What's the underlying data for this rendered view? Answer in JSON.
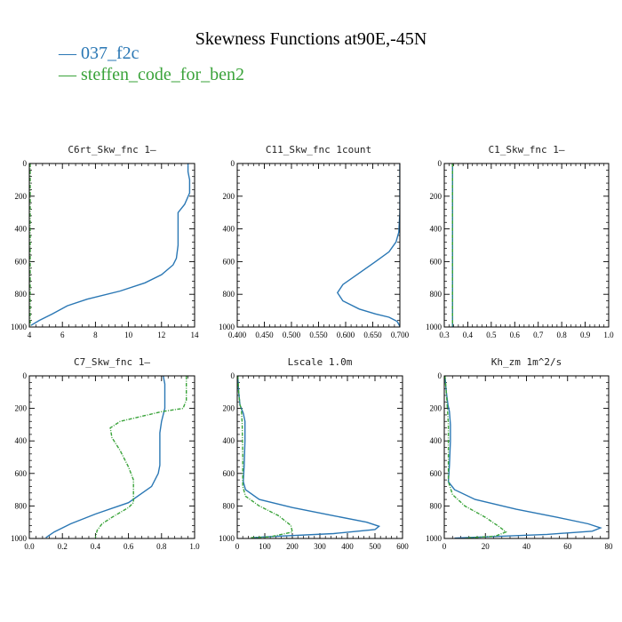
{
  "figure": {
    "title": "Skewness Functions at90E,-45N",
    "legend": [
      {
        "label": "— 037_f2c",
        "color": "#2a77b4"
      },
      {
        "label": "— steffen_code_for_ben2",
        "color": "#3aa33a"
      }
    ]
  },
  "chart_data": [
    {
      "type": "line",
      "title": "C6rt_Skw_fnc  1—",
      "xlim": [
        4,
        14
      ],
      "xticks": [
        4,
        6,
        8,
        10,
        12,
        14
      ],
      "xticklabels": [
        "4",
        "6",
        "8",
        "10",
        "12",
        "14"
      ],
      "ylim": [
        1000,
        0
      ],
      "yticks": [
        0,
        200,
        400,
        600,
        800,
        1000
      ],
      "series": [
        {
          "name": "037_f2c",
          "color": "#2a77b4",
          "dashed": false,
          "x": [
            13.6,
            13.6,
            13.7,
            13.7,
            13.4,
            13.0,
            13.0,
            13.0,
            12.9,
            12.7,
            12.0,
            11.0,
            9.5,
            7.5,
            6.3,
            5.4,
            4.6,
            4.1
          ],
          "y": [
            0,
            50,
            100,
            180,
            250,
            300,
            400,
            500,
            580,
            620,
            680,
            730,
            780,
            830,
            870,
            920,
            960,
            990
          ]
        },
        {
          "name": "steffen_code_for_ben2",
          "color": "#3aa33a",
          "dashed": true,
          "x": [
            4.05,
            4.05
          ],
          "y": [
            0,
            1000
          ]
        }
      ]
    },
    {
      "type": "line",
      "title": "C11_Skw_fnc  1count",
      "xlim": [
        0.4,
        0.7
      ],
      "xticks": [
        0.4,
        0.45,
        0.5,
        0.55,
        0.6,
        0.65,
        0.7
      ],
      "xticklabels": [
        "0.400",
        "0.450",
        "0.500",
        "0.550",
        "0.600",
        "0.650",
        "0.700"
      ],
      "ylim": [
        1000,
        0
      ],
      "yticks": [
        0,
        200,
        400,
        600,
        800,
        1000
      ],
      "series": [
        {
          "name": "037_f2c",
          "color": "#2a77b4",
          "dashed": false,
          "x": [
            0.7,
            0.7,
            0.698,
            0.693,
            0.68,
            0.655,
            0.625,
            0.595,
            0.585,
            0.595,
            0.625,
            0.655,
            0.68,
            0.695,
            0.7
          ],
          "y": [
            0,
            300,
            420,
            480,
            540,
            600,
            670,
            740,
            790,
            840,
            890,
            920,
            940,
            965,
            995
          ]
        }
      ]
    },
    {
      "type": "line",
      "title": "C1_Skw_fnc  1—",
      "xlim": [
        0.3,
        1.0
      ],
      "xticks": [
        0.3,
        0.4,
        0.5,
        0.6,
        0.7,
        0.8,
        0.9,
        1.0
      ],
      "xticklabels": [
        "0.3",
        "0.4",
        "0.5",
        "0.6",
        "0.7",
        "0.8",
        "0.9",
        "1.0"
      ],
      "ylim": [
        1000,
        0
      ],
      "yticks": [
        0,
        200,
        400,
        600,
        800,
        1000
      ],
      "series": [
        {
          "name": "037_f2c",
          "color": "#2a77b4",
          "dashed": false,
          "x": [
            0.335,
            0.335
          ],
          "y": [
            0,
            1000
          ]
        },
        {
          "name": "steffen_code_for_ben2",
          "color": "#3aa33a",
          "dashed": true,
          "x": [
            0.335,
            0.335
          ],
          "y": [
            0,
            1000
          ]
        }
      ]
    },
    {
      "type": "line",
      "title": "C7_Skw_fnc  1—",
      "xlim": [
        0.0,
        1.0
      ],
      "xticks": [
        0.0,
        0.2,
        0.4,
        0.6,
        0.8,
        1.0
      ],
      "xticklabels": [
        "0.0",
        "0.2",
        "0.4",
        "0.6",
        "0.8",
        "1.0"
      ],
      "ylim": [
        1000,
        0
      ],
      "yticks": [
        0,
        200,
        400,
        600,
        800,
        1000
      ],
      "series": [
        {
          "name": "037_f2c",
          "color": "#2a77b4",
          "dashed": false,
          "x": [
            0.81,
            0.82,
            0.82,
            0.8,
            0.79,
            0.79,
            0.79,
            0.78,
            0.74,
            0.6,
            0.4,
            0.25,
            0.15,
            0.1
          ],
          "y": [
            0,
            50,
            200,
            280,
            350,
            450,
            550,
            600,
            680,
            780,
            850,
            910,
            960,
            995
          ]
        },
        {
          "name": "steffen_code_for_ben2",
          "color": "#3aa33a",
          "dashed": true,
          "x": [
            0.95,
            0.95,
            0.93,
            0.8,
            0.55,
            0.49,
            0.5,
            0.55,
            0.6,
            0.63,
            0.63,
            0.6,
            0.5,
            0.44,
            0.41,
            0.4
          ],
          "y": [
            0,
            150,
            200,
            220,
            280,
            320,
            380,
            460,
            560,
            640,
            780,
            810,
            870,
            910,
            950,
            995
          ]
        }
      ]
    },
    {
      "type": "line",
      "title": "Lscale  1.0m",
      "xlim": [
        0,
        600
      ],
      "xticks": [
        0,
        100,
        200,
        300,
        400,
        500,
        600
      ],
      "xticklabels": [
        "0",
        "100",
        "200",
        "300",
        "400",
        "500",
        "600"
      ],
      "ylim": [
        1000,
        0
      ],
      "yticks": [
        0,
        200,
        400,
        600,
        800,
        1000
      ],
      "series": [
        {
          "name": "037_f2c",
          "color": "#2a77b4",
          "dashed": false,
          "x": [
            2,
            5,
            10,
            15,
            22,
            28,
            28,
            25,
            22,
            30,
            80,
            200,
            350,
            470,
            515,
            500,
            350,
            100,
            60
          ],
          "y": [
            0,
            100,
            180,
            200,
            230,
            280,
            400,
            550,
            650,
            700,
            760,
            810,
            860,
            900,
            925,
            945,
            970,
            990,
            995
          ]
        },
        {
          "name": "steffen_code_for_ben2",
          "color": "#3aa33a",
          "dashed": true,
          "x": [
            2,
            5,
            10,
            15,
            18,
            20,
            20,
            20,
            30,
            80,
            150,
            195,
            200,
            120,
            50
          ],
          "y": [
            0,
            100,
            180,
            200,
            300,
            500,
            600,
            680,
            740,
            800,
            860,
            920,
            960,
            990,
            995
          ]
        }
      ]
    },
    {
      "type": "line",
      "title": "Kh_zm  1m^2/s",
      "xlim": [
        0,
        80
      ],
      "xticks": [
        0,
        20,
        40,
        60,
        80
      ],
      "xticklabels": [
        "0",
        "20",
        "40",
        "60",
        "80"
      ],
      "ylim": [
        1000,
        0
      ],
      "yticks": [
        0,
        200,
        400,
        600,
        800,
        1000
      ],
      "series": [
        {
          "name": "037_f2c",
          "color": "#2a77b4",
          "dashed": false,
          "x": [
            0.3,
            1,
            1.8,
            2.5,
            3,
            3,
            2.5,
            2,
            5,
            15,
            35,
            55,
            70,
            76,
            72,
            50,
            20,
            5
          ],
          "y": [
            0,
            100,
            180,
            220,
            300,
            400,
            550,
            650,
            700,
            760,
            820,
            870,
            910,
            935,
            955,
            975,
            990,
            998
          ]
        },
        {
          "name": "steffen_code_for_ben2",
          "color": "#3aa33a",
          "dashed": true,
          "x": [
            0.3,
            1,
            1.5,
            2,
            2,
            2,
            4,
            10,
            20,
            27,
            30,
            25,
            10
          ],
          "y": [
            0,
            100,
            200,
            300,
            500,
            650,
            730,
            800,
            870,
            930,
            960,
            985,
            998
          ]
        }
      ]
    }
  ]
}
